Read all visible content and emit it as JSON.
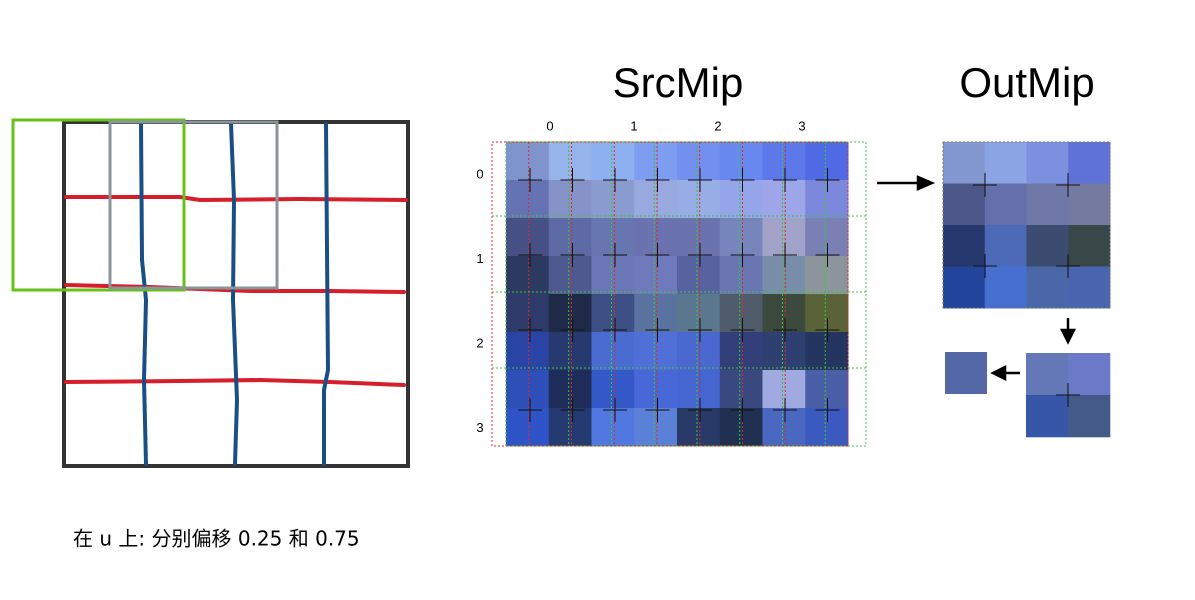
{
  "src_title": "SrcMip",
  "out_title": "OutMip",
  "src_columns": [
    "0",
    "1",
    "2",
    "3"
  ],
  "src_rows": [
    "0",
    "1",
    "2",
    "3"
  ],
  "caption": "在 u 上: 分别偏移 0.25 和 0.75"
}
